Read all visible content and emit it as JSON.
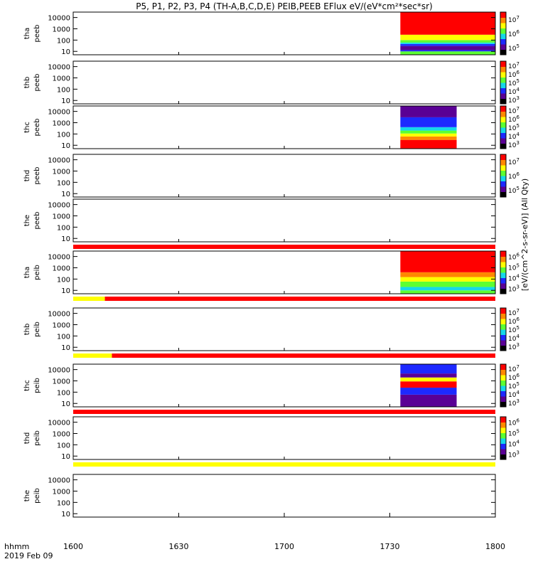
{
  "title": "P5, P1, P2, P3, P4 (TH-A,B,C,D,E) PEIB,PEEB EFlux eV/(eV*cm²*sec*sr)",
  "time_axis": {
    "row_label": "hhmm",
    "date_label": "2019 Feb 09",
    "ticks": [
      "1600",
      "1630",
      "1700",
      "1730",
      "1800"
    ]
  },
  "y_ticks": [
    "10",
    "100",
    "1000",
    "10000"
  ],
  "colorbar_units": "[eV/(cm^2-s-sr-eV)] (All Qty)",
  "palette": {
    "black": "#000000",
    "purple": "#5a0095",
    "blue": "#1d29ff",
    "cyan": "#15d7ea",
    "green": "#5cff33",
    "yellow": "#ffff00",
    "orange": "#ff8800",
    "red": "#ff0000",
    "mode_red": "#ff0000",
    "mode_yellow": "#ffff00"
  },
  "chart_data": {
    "type": "heatmap",
    "x_range": [
      "16:00",
      "18:00"
    ],
    "y_scale": "log",
    "y_range_eV": [
      5,
      30000
    ],
    "panels": [
      {
        "id": "tha-peeb",
        "probe": "tha",
        "product": "peeb",
        "data_span": [
          "17:33",
          "18:00"
        ],
        "pattern": "electron-hot",
        "colorbar": [
          "10^5",
          "10^6",
          "10^7"
        ],
        "mode_bar": null
      },
      {
        "id": "thb-peeb",
        "probe": "thb",
        "product": "peeb",
        "data_span": null,
        "pattern": null,
        "colorbar": [
          "10^3",
          "10^4",
          "10^5",
          "10^6",
          "10^7"
        ],
        "mode_bar": null
      },
      {
        "id": "thc-peeb",
        "probe": "thc",
        "product": "peeb",
        "data_span": [
          "17:33",
          "17:49"
        ],
        "pattern": "electron-cold",
        "colorbar": [
          "10^3",
          "10^4",
          "10^5",
          "10^6",
          "10^7"
        ],
        "mode_bar": null
      },
      {
        "id": "thd-peeb",
        "probe": "thd",
        "product": "peeb",
        "data_span": null,
        "pattern": null,
        "colorbar": [
          "10^5",
          "10^6",
          "10^7"
        ],
        "mode_bar": null
      },
      {
        "id": "the-peeb",
        "probe": "the",
        "product": "peeb",
        "data_span": null,
        "pattern": null,
        "colorbar": null,
        "mode_bar": [
          {
            "from": "16:00",
            "to": "18:00",
            "color": "red"
          }
        ]
      },
      {
        "id": "tha-peib",
        "probe": "tha",
        "product": "peib",
        "data_span": [
          "17:33",
          "18:00"
        ],
        "pattern": "ion-hot",
        "colorbar": [
          "10^3",
          "10^4",
          "10^5",
          "10^6"
        ],
        "mode_bar": [
          {
            "from": "16:00",
            "to": "16:09",
            "color": "yellow"
          },
          {
            "from": "16:09",
            "to": "18:00",
            "color": "red"
          }
        ]
      },
      {
        "id": "thb-peib",
        "probe": "thb",
        "product": "peib",
        "data_span": null,
        "pattern": null,
        "colorbar": [
          "10^3",
          "10^4",
          "10^5",
          "10^6",
          "10^7"
        ],
        "mode_bar": [
          {
            "from": "16:00",
            "to": "16:11",
            "color": "yellow"
          },
          {
            "from": "16:11",
            "to": "18:00",
            "color": "red"
          }
        ]
      },
      {
        "id": "thc-peib",
        "probe": "thc",
        "product": "peib",
        "data_span": [
          "17:33",
          "17:49"
        ],
        "pattern": "ion-banded",
        "colorbar": [
          "10^3",
          "10^4",
          "10^5",
          "10^6",
          "10^7"
        ],
        "mode_bar": [
          {
            "from": "16:00",
            "to": "18:00",
            "color": "red"
          }
        ]
      },
      {
        "id": "thd-peib",
        "probe": "thd",
        "product": "peib",
        "data_span": null,
        "pattern": null,
        "colorbar": [
          "10^3",
          "10^4",
          "10^5",
          "10^6"
        ],
        "mode_bar": [
          {
            "from": "16:00",
            "to": "18:00",
            "color": "yellow"
          }
        ]
      },
      {
        "id": "the-peib",
        "probe": "the",
        "product": "peib",
        "data_span": null,
        "pattern": null,
        "colorbar": null,
        "mode_bar": null
      }
    ]
  }
}
